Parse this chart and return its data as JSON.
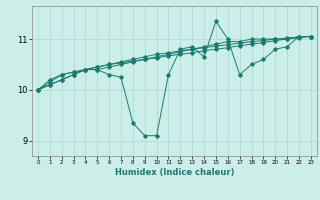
{
  "xlabel": "Humidex (Indice chaleur)",
  "ylabel": "",
  "bg_color": "#cceee8",
  "line_color": "#1a7a6e",
  "grid_color": "#aad8d0",
  "xlim": [
    -0.5,
    23.5
  ],
  "ylim": [
    8.7,
    11.65
  ],
  "yticks": [
    9,
    10,
    11
  ],
  "xticks": [
    0,
    1,
    2,
    3,
    4,
    5,
    6,
    7,
    8,
    9,
    10,
    11,
    12,
    13,
    14,
    15,
    16,
    17,
    18,
    19,
    20,
    21,
    22,
    23
  ],
  "series": [
    [
      10.0,
      10.2,
      10.3,
      10.35,
      10.4,
      10.4,
      10.3,
      10.25,
      9.35,
      9.1,
      9.1,
      10.3,
      10.8,
      10.85,
      10.65,
      11.35,
      11.0,
      10.3,
      10.5,
      10.6,
      10.8,
      10.85,
      11.05,
      11.05
    ],
    [
      10.0,
      10.15,
      10.3,
      10.35,
      10.4,
      10.4,
      10.45,
      10.5,
      10.55,
      10.6,
      10.65,
      10.7,
      10.75,
      10.8,
      10.85,
      10.9,
      10.95,
      10.95,
      11.0,
      11.0,
      11.0,
      11.0,
      11.05,
      11.05
    ],
    [
      10.0,
      10.1,
      10.2,
      10.3,
      10.4,
      10.45,
      10.5,
      10.55,
      10.6,
      10.65,
      10.7,
      10.73,
      10.77,
      10.8,
      10.83,
      10.86,
      10.89,
      10.92,
      10.95,
      10.97,
      11.0,
      11.02,
      11.04,
      11.05
    ],
    [
      10.0,
      10.1,
      10.2,
      10.3,
      10.4,
      10.45,
      10.5,
      10.53,
      10.57,
      10.6,
      10.63,
      10.67,
      10.7,
      10.73,
      10.77,
      10.8,
      10.83,
      10.87,
      10.9,
      10.93,
      10.97,
      11.0,
      11.03,
      11.05
    ]
  ]
}
